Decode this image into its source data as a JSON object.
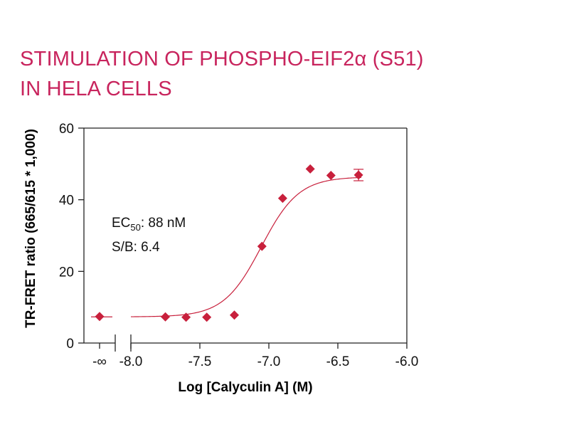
{
  "title_lines": [
    "STIMULATION OF PHOSPHO-EIF2α (S51)",
    "IN HELA CELLS"
  ],
  "colors": {
    "title": "#c8245d",
    "marker": "#c8203c",
    "curve": "#c8203c",
    "axis": "#222222"
  },
  "chart_data": {
    "type": "scatter",
    "xlabel": "Log [Calyculin A] (M)",
    "ylabel": "TR-FRET ratio (665/615 * 1,000)",
    "xlim": [
      -8.0,
      -6.0
    ],
    "ylim": [
      0,
      60
    ],
    "x_ticks": [
      {
        "label": "-∞",
        "value": null
      },
      {
        "label": "-8.0",
        "value": -8.0
      },
      {
        "label": "-7.5",
        "value": -7.5
      },
      {
        "label": "-7.0",
        "value": -7.0
      },
      {
        "label": "-6.5",
        "value": -6.5
      },
      {
        "label": "-6.0",
        "value": -6.0
      }
    ],
    "y_ticks": [
      {
        "label": "0",
        "value": 0
      },
      {
        "label": "20",
        "value": 20
      },
      {
        "label": "40",
        "value": 40
      },
      {
        "label": "60",
        "value": 60
      }
    ],
    "points": [
      {
        "x": "-∞",
        "y": 7.4
      },
      {
        "x": -7.75,
        "y": 7.3
      },
      {
        "x": -7.6,
        "y": 7.2
      },
      {
        "x": -7.45,
        "y": 7.2
      },
      {
        "x": -7.25,
        "y": 7.8
      },
      {
        "x": -7.05,
        "y": 27.0
      },
      {
        "x": -6.9,
        "y": 40.4
      },
      {
        "x": -6.7,
        "y": 48.6
      },
      {
        "x": -6.55,
        "y": 46.8
      },
      {
        "x": -6.35,
        "y": 46.9,
        "error": 1.6
      }
    ],
    "fit": {
      "bottom": 7.3,
      "top": 46.4,
      "log_ec50": -7.055,
      "hill": 3.2
    },
    "annotations": {
      "ec50_prefix": "EC",
      "ec50_sub": "50",
      "ec50_value": ": 88 nM",
      "sb": "S/B: 6.4"
    }
  }
}
